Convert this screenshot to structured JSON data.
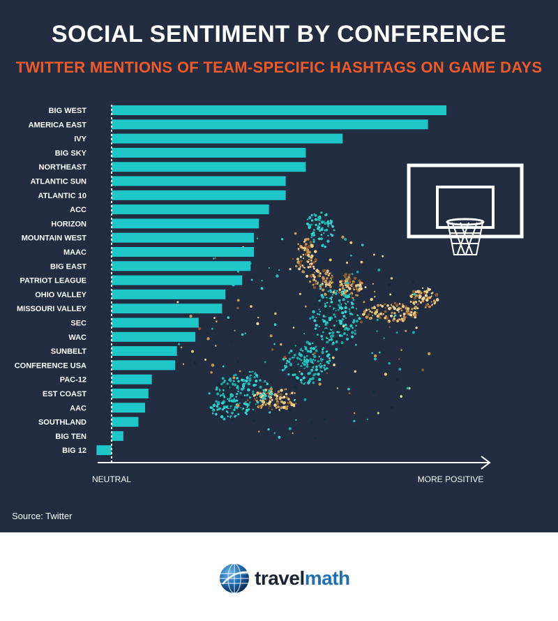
{
  "header": {
    "title": "SOCIAL SENTIMENT BY CONFERENCE",
    "subtitle": "TWITTER MENTIONS OF TEAM-SPECIFIC HASHTAGS ON GAME DAYS"
  },
  "colors": {
    "background": "#232d41",
    "bar": "#1ec8c8",
    "title": "#ffffff",
    "subtitle": "#f05a28",
    "axis": "#ffffff",
    "illustration_teal": "#22c3c0",
    "illustration_gold": "#e8c47a",
    "illustration_brown": "#8a5a2b"
  },
  "chart_data": {
    "type": "bar",
    "orientation": "horizontal",
    "categories": [
      "BIG WEST",
      "AMERICA EAST",
      "IVY",
      "BIG SKY",
      "NORTHEAST",
      "ATLANTIC SUN",
      "ATLANTIC 10",
      "ACC",
      "HORIZON",
      "MOUNTAIN WEST",
      "MAAC",
      "BIG EAST",
      "PATRIOT LEAGUE",
      "OHIO VALLEY",
      "MISSOURI VALLEY",
      "SEC",
      "WAC",
      "SUNBELT",
      "CONFERENCE USA",
      "PAC-12",
      "EST COAST",
      "AAC",
      "SOUTHLAND",
      "BIG TEN",
      "BIG 12"
    ],
    "values": [
      100,
      94.5,
      69,
      58,
      58,
      52,
      52,
      47,
      44,
      42.5,
      42.5,
      41.5,
      39,
      34,
      33,
      26,
      25,
      19.5,
      19,
      12,
      11,
      10,
      8,
      3.5,
      -4.5
    ],
    "xlim": [
      -5,
      115
    ],
    "xlabel_left": "NEUTRAL",
    "xlabel_right": "MORE POSITIVE",
    "tick_labels_shown": false,
    "grid": false
  },
  "source": "Source: Twitter",
  "footer": {
    "logo_part1": "travel",
    "logo_part2": "math"
  },
  "icons": {
    "hoop": "basketball-hoop-icon",
    "player": "basketball-player-illustration",
    "globe": "globe-icon"
  }
}
